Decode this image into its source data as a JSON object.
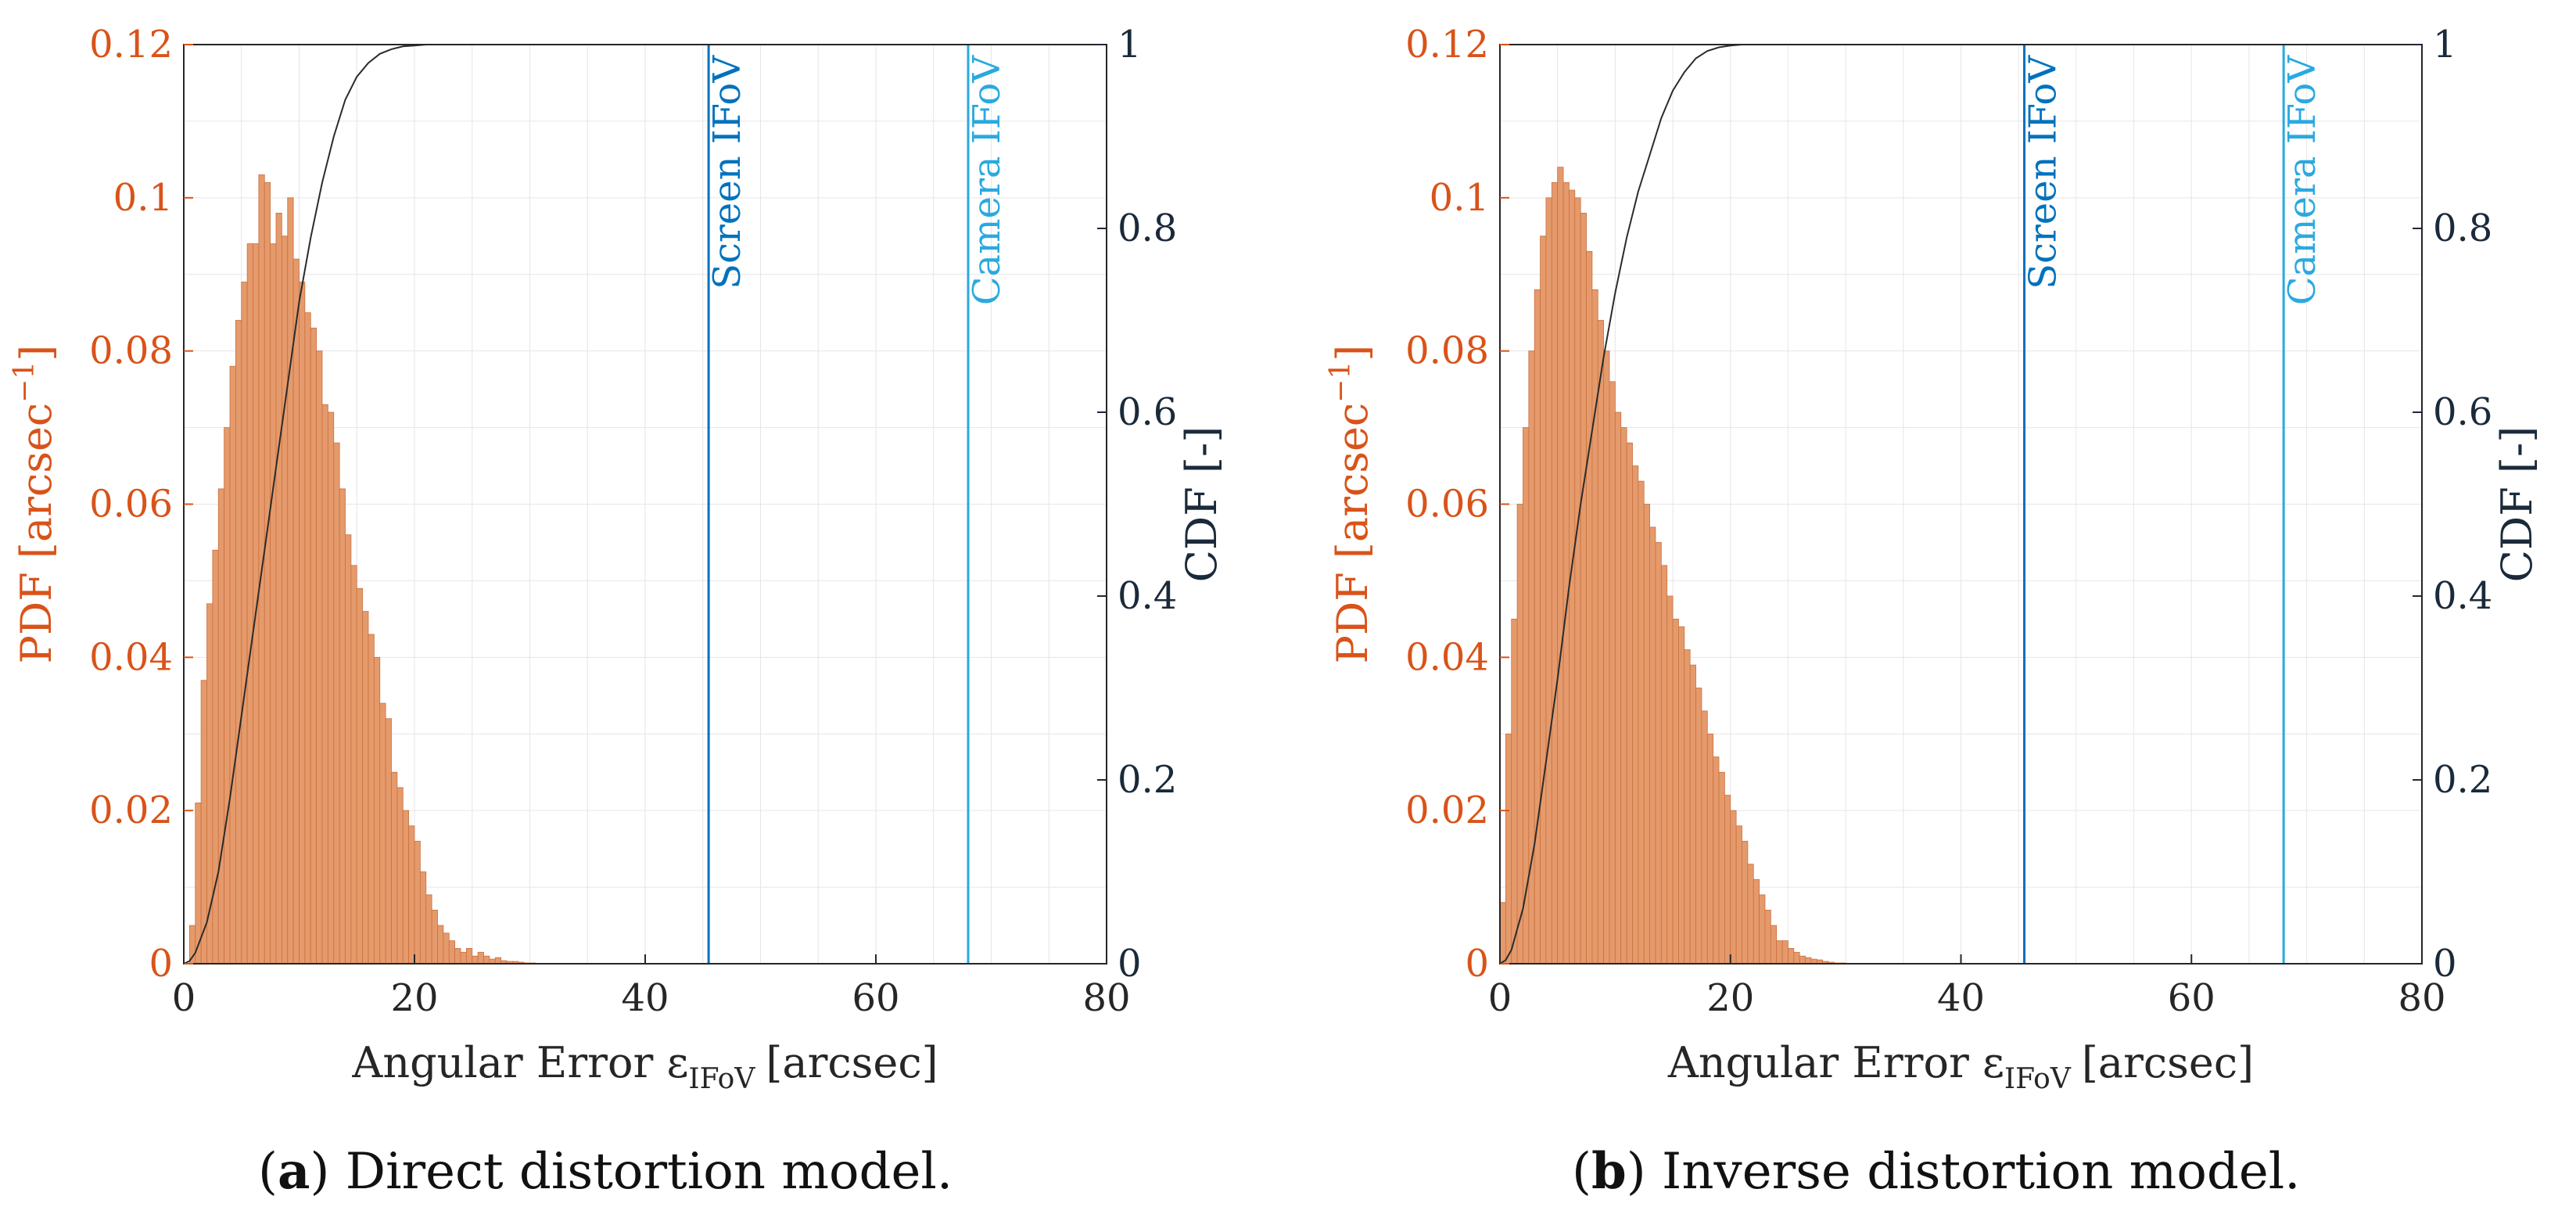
{
  "colors": {
    "pdf": "#D95319",
    "hist_fill": "#E59A6C",
    "cdf_axis": "#1a2a3a",
    "screen_line": "#0072BD",
    "camera_line": "#2AA9E0",
    "grid": "#e6e6e6",
    "axis": "#262626"
  },
  "chart_data": [
    {
      "type": "bar",
      "subtype": "histogram-with-cdf",
      "xlabel_main": "Angular Error ε",
      "xlabel_sub": "IFoV",
      "xlabel_unit": "[arcsec]",
      "ylabel_left": "PDF [arcsec",
      "ylabel_left_sup": "−1",
      "ylabel_left_close": "]",
      "ylabel_right": "CDF [-]",
      "xlim": [
        0,
        80
      ],
      "ylim_left": [
        0,
        0.12
      ],
      "ylim_right": [
        0,
        1
      ],
      "xticks": [
        "0",
        "20",
        "40",
        "60",
        "80"
      ],
      "yticks_left": [
        "0",
        "0.02",
        "0.04",
        "0.06",
        "0.08",
        "0.1",
        "0.12"
      ],
      "yticks_right": [
        "0",
        "0.2",
        "0.4",
        "0.6",
        "0.8",
        "1"
      ],
      "vlines": [
        {
          "name": "Screen IFoV",
          "x": 45.5
        },
        {
          "name": "Camera IFoV",
          "x": 68
        }
      ],
      "bin_width": 0.5,
      "bin_start": 0.5,
      "pdf_values": [
        0.005,
        0.021,
        0.037,
        0.047,
        0.054,
        0.062,
        0.07,
        0.078,
        0.084,
        0.089,
        0.094,
        0.094,
        0.103,
        0.102,
        0.094,
        0.098,
        0.095,
        0.1,
        0.092,
        0.089,
        0.085,
        0.083,
        0.08,
        0.073,
        0.072,
        0.068,
        0.062,
        0.056,
        0.052,
        0.049,
        0.046,
        0.043,
        0.04,
        0.034,
        0.032,
        0.025,
        0.023,
        0.02,
        0.018,
        0.016,
        0.012,
        0.009,
        0.007,
        0.005,
        0.004,
        0.003,
        0.002,
        0.0015,
        0.002,
        0.001,
        0.0015,
        0.001,
        0.0006,
        0.0008,
        0.0004,
        0.0003,
        0.0003,
        0.0002,
        0.0001,
        0.0001
      ],
      "cdf_x": [
        0,
        0.5,
        1,
        2,
        3,
        4,
        5,
        6,
        7,
        8,
        9,
        10,
        11,
        12,
        13,
        14,
        15,
        16,
        17,
        18,
        19,
        20,
        21,
        22,
        23,
        24,
        30
      ],
      "cdf_y": [
        0,
        0.003,
        0.012,
        0.045,
        0.1,
        0.18,
        0.27,
        0.36,
        0.45,
        0.54,
        0.63,
        0.72,
        0.79,
        0.85,
        0.9,
        0.94,
        0.965,
        0.98,
        0.99,
        0.995,
        0.998,
        0.999,
        1,
        1,
        1,
        1,
        1
      ],
      "caption_tag": "a",
      "caption_text": " Direct distortion model."
    },
    {
      "type": "bar",
      "subtype": "histogram-with-cdf",
      "xlabel_main": "Angular Error ε",
      "xlabel_sub": "IFoV",
      "xlabel_unit": "[arcsec]",
      "ylabel_left": "PDF [arcsec",
      "ylabel_left_sup": "−1",
      "ylabel_left_close": "]",
      "ylabel_right": "CDF [-]",
      "xlim": [
        0,
        80
      ],
      "ylim_left": [
        0,
        0.12
      ],
      "ylim_right": [
        0,
        1
      ],
      "xticks": [
        "0",
        "20",
        "40",
        "60",
        "80"
      ],
      "yticks_left": [
        "0",
        "0.02",
        "0.04",
        "0.06",
        "0.08",
        "0.1",
        "0.12"
      ],
      "yticks_right": [
        "0",
        "0.2",
        "0.4",
        "0.6",
        "0.8",
        "1"
      ],
      "vlines": [
        {
          "name": "Screen IFoV",
          "x": 45.5
        },
        {
          "name": "Camera IFoV",
          "x": 68
        }
      ],
      "bin_width": 0.5,
      "bin_start": 0.0,
      "pdf_values": [
        0.008,
        0.03,
        0.045,
        0.06,
        0.07,
        0.08,
        0.088,
        0.095,
        0.1,
        0.102,
        0.104,
        0.102,
        0.101,
        0.1,
        0.098,
        0.093,
        0.088,
        0.084,
        0.08,
        0.076,
        0.072,
        0.07,
        0.068,
        0.065,
        0.063,
        0.06,
        0.057,
        0.055,
        0.052,
        0.048,
        0.045,
        0.044,
        0.041,
        0.039,
        0.036,
        0.033,
        0.03,
        0.027,
        0.025,
        0.022,
        0.02,
        0.018,
        0.016,
        0.013,
        0.011,
        0.009,
        0.007,
        0.005,
        0.003,
        0.003,
        0.002,
        0.0015,
        0.001,
        0.0008,
        0.0006,
        0.0005,
        0.0003,
        0.0002,
        0.0001,
        0.0001
      ],
      "cdf_x": [
        0,
        0.5,
        1,
        2,
        3,
        4,
        5,
        6,
        7,
        8,
        9,
        10,
        11,
        12,
        13,
        14,
        15,
        16,
        17,
        18,
        19,
        20,
        21,
        22,
        23,
        24,
        30
      ],
      "cdf_y": [
        0,
        0.004,
        0.015,
        0.06,
        0.13,
        0.22,
        0.31,
        0.41,
        0.5,
        0.58,
        0.66,
        0.73,
        0.79,
        0.84,
        0.88,
        0.92,
        0.95,
        0.97,
        0.985,
        0.993,
        0.997,
        0.999,
        1,
        1,
        1,
        1,
        1
      ],
      "caption_tag": "b",
      "caption_text": " Inverse distortion model."
    }
  ]
}
